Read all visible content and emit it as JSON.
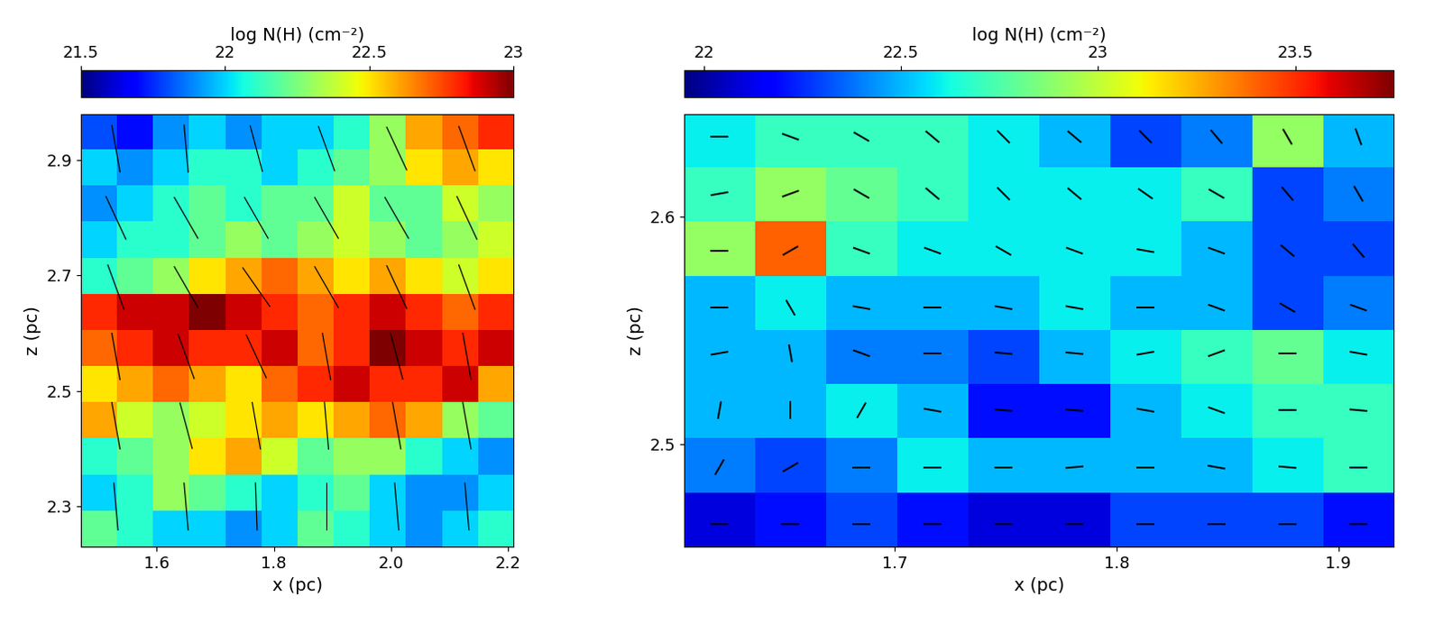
{
  "chart_data": [
    {
      "type": "heatmap",
      "colorbar_label": "log N(H) (cm⁻²)",
      "x_label": "x (pc)",
      "y_label": "z (pc)",
      "xlim": [
        1.47,
        2.21
      ],
      "ylim": [
        2.23,
        2.98
      ],
      "xticks": [
        1.6,
        1.8,
        2.0,
        2.2
      ],
      "yticks": [
        2.3,
        2.5,
        2.7,
        2.9
      ],
      "colorbar_range": [
        21.5,
        23
      ],
      "colorbar_ticks": [
        21.5,
        22,
        22.5,
        23
      ],
      "color": "jet",
      "cells": [
        [
          21.8,
          21.7,
          21.9,
          22.0,
          21.9,
          22.0,
          22.0,
          22.1,
          22.3,
          22.6,
          22.7,
          22.8
        ],
        [
          22.0,
          21.9,
          22.0,
          22.1,
          22.1,
          22.0,
          22.1,
          22.2,
          22.3,
          22.5,
          22.6,
          22.5
        ],
        [
          21.9,
          22.0,
          22.1,
          22.2,
          22.1,
          22.2,
          22.2,
          22.4,
          22.2,
          22.2,
          22.4,
          22.3
        ],
        [
          22.0,
          22.1,
          22.1,
          22.2,
          22.3,
          22.2,
          22.3,
          22.4,
          22.3,
          22.2,
          22.3,
          22.4
        ],
        [
          22.1,
          22.2,
          22.3,
          22.5,
          22.6,
          22.7,
          22.6,
          22.5,
          22.6,
          22.5,
          22.4,
          22.5
        ],
        [
          22.8,
          22.9,
          22.9,
          23.0,
          22.9,
          22.8,
          22.7,
          22.8,
          22.9,
          22.8,
          22.7,
          22.8
        ],
        [
          22.7,
          22.8,
          22.9,
          22.8,
          22.8,
          22.9,
          22.7,
          22.8,
          23.0,
          22.9,
          22.8,
          22.9
        ],
        [
          22.5,
          22.6,
          22.7,
          22.6,
          22.5,
          22.7,
          22.8,
          22.9,
          22.8,
          22.8,
          22.9,
          22.6
        ],
        [
          22.6,
          22.4,
          22.3,
          22.4,
          22.5,
          22.6,
          22.5,
          22.6,
          22.7,
          22.6,
          22.3,
          22.2
        ],
        [
          22.1,
          22.2,
          22.3,
          22.5,
          22.6,
          22.4,
          22.2,
          22.3,
          22.3,
          22.1,
          22.0,
          21.9
        ],
        [
          22.0,
          22.1,
          22.3,
          22.2,
          22.1,
          22.0,
          22.1,
          22.2,
          22.0,
          21.9,
          21.9,
          22.0
        ],
        [
          22.2,
          22.1,
          22.0,
          22.0,
          21.9,
          22.0,
          22.2,
          22.1,
          22.0,
          21.9,
          22.0,
          22.1
        ]
      ],
      "vectors": {
        "x": [
          1.53,
          1.65,
          1.77,
          1.89,
          2.01,
          2.13
        ],
        "y": [
          2.92,
          2.8,
          2.68,
          2.56,
          2.44,
          2.3
        ],
        "angles": [
          [
            -80,
            -85,
            -75,
            -70,
            -65,
            -70
          ],
          [
            -65,
            -60,
            -60,
            -60,
            -60,
            -65
          ],
          [
            -70,
            -60,
            -55,
            -60,
            -65,
            -70
          ],
          [
            -80,
            -70,
            -65,
            -80,
            -75,
            -80
          ],
          [
            -80,
            -75,
            -80,
            -85,
            -80,
            -80
          ],
          [
            -85,
            -85,
            -88,
            -90,
            -85,
            -85
          ]
        ]
      }
    },
    {
      "type": "heatmap",
      "colorbar_label": "log N(H) (cm⁻²)",
      "x_label": "x (pc)",
      "y_label": "z (pc)",
      "xlim": [
        1.605,
        1.925
      ],
      "ylim": [
        2.455,
        2.645
      ],
      "xticks": [
        1.7,
        1.8,
        1.9
      ],
      "yticks": [
        2.5,
        2.6
      ],
      "colorbar_range": [
        21.95,
        23.75
      ],
      "colorbar_ticks": [
        22,
        22.5,
        23,
        23.5
      ],
      "color": "jet",
      "cells": [
        [
          22.6,
          22.7,
          22.7,
          22.7,
          22.6,
          22.5,
          22.3,
          22.4,
          22.9,
          22.5
        ],
        [
          22.7,
          22.9,
          22.8,
          22.7,
          22.6,
          22.6,
          22.6,
          22.7,
          22.3,
          22.4
        ],
        [
          22.9,
          23.4,
          22.7,
          22.6,
          22.6,
          22.6,
          22.6,
          22.5,
          22.3,
          22.3
        ],
        [
          22.5,
          22.6,
          22.5,
          22.5,
          22.5,
          22.6,
          22.5,
          22.5,
          22.3,
          22.4
        ],
        [
          22.5,
          22.5,
          22.4,
          22.4,
          22.3,
          22.5,
          22.6,
          22.7,
          22.8,
          22.6
        ],
        [
          22.5,
          22.5,
          22.6,
          22.5,
          22.2,
          22.2,
          22.5,
          22.6,
          22.7,
          22.7
        ],
        [
          22.4,
          22.3,
          22.4,
          22.6,
          22.5,
          22.5,
          22.5,
          22.5,
          22.6,
          22.7
        ],
        [
          22.1,
          22.2,
          22.3,
          22.2,
          22.1,
          22.1,
          22.3,
          22.3,
          22.3,
          22.2
        ]
      ],
      "vectors": {
        "x": [
          1.621,
          1.653,
          1.685,
          1.717,
          1.749,
          1.781,
          1.813,
          1.845,
          1.877,
          1.909
        ],
        "y": [
          2.635,
          2.61,
          2.585,
          2.56,
          2.54,
          2.515,
          2.49,
          2.465
        ],
        "angles": [
          [
            0,
            -20,
            -30,
            -40,
            -45,
            -40,
            -45,
            -50,
            -60,
            -70
          ],
          [
            10,
            20,
            -30,
            -40,
            -45,
            -40,
            -35,
            -30,
            -50,
            -60
          ],
          [
            0,
            30,
            -20,
            -20,
            -30,
            -20,
            -10,
            -20,
            -40,
            -50
          ],
          [
            0,
            -60,
            -10,
            0,
            -10,
            -10,
            0,
            -20,
            -30,
            -20
          ],
          [
            10,
            -80,
            -20,
            0,
            -5,
            -5,
            10,
            20,
            0,
            -10
          ],
          [
            80,
            90,
            60,
            -10,
            -5,
            -5,
            -10,
            -20,
            0,
            -5
          ],
          [
            60,
            30,
            0,
            0,
            0,
            5,
            0,
            -10,
            -5,
            0
          ],
          [
            0,
            0,
            0,
            0,
            0,
            0,
            0,
            0,
            0,
            0
          ]
        ]
      }
    }
  ]
}
